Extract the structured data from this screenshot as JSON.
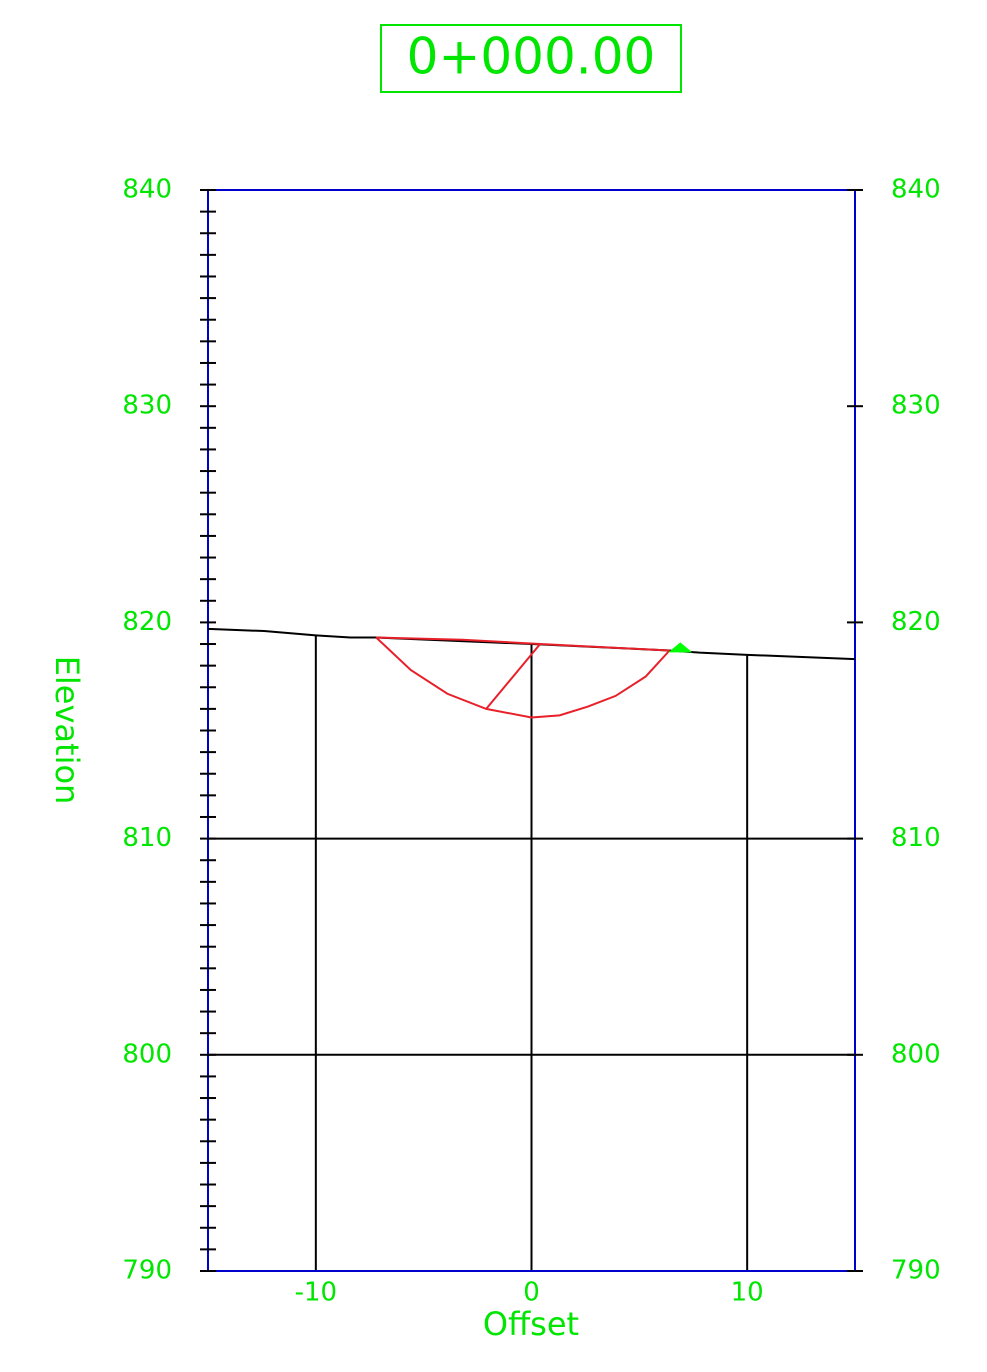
{
  "chart_data": {
    "type": "line",
    "title": "0+000.00",
    "xlabel": "Offset",
    "ylabel": "Elevation",
    "xlim": [
      -15,
      15
    ],
    "ylim": [
      790,
      840
    ],
    "xticks": [
      -10,
      0,
      10
    ],
    "yticks": [
      790,
      800,
      810,
      820,
      830,
      840
    ],
    "yminorticks": [
      791,
      792,
      793,
      794,
      795,
      796,
      797,
      798,
      799,
      801,
      802,
      803,
      804,
      805,
      806,
      807,
      808,
      809,
      811,
      812,
      813,
      814,
      815,
      816,
      817,
      818,
      819,
      821,
      822,
      823,
      824,
      825,
      826,
      827,
      828,
      829,
      831,
      832,
      833,
      834,
      835,
      836,
      837,
      838,
      839
    ],
    "grid": true,
    "axis_color": "#0000cc",
    "text_color": "#00e600",
    "series": [
      {
        "color": "#000000",
        "x": [
          -15,
          -12.4,
          -10,
          -8.4,
          -7.2,
          0,
          6.4,
          7.8,
          10,
          15
        ],
        "values": [
          819.7,
          819.6,
          819.4,
          819.3,
          819.3,
          819.0,
          818.7,
          818.6,
          818.5,
          818.3
        ]
      },
      {
        "color": "#e8202a",
        "x": [
          -7.2,
          -3.2,
          0.4,
          6.4
        ],
        "values": [
          819.3,
          819.2,
          819.0,
          818.7
        ]
      },
      {
        "color": "#e8202a",
        "x": [
          -7.2,
          -5.6,
          -3.9,
          -2.1,
          0,
          1.3,
          2.6,
          3.9,
          5.3,
          6.4
        ],
        "values": [
          819.3,
          817.8,
          816.7,
          816.0,
          815.6,
          815.7,
          816.1,
          816.6,
          817.5,
          818.7
        ]
      },
      {
        "color": "#e8202a",
        "x": [
          -2.1,
          0.4
        ],
        "values": [
          816.0,
          819.0
        ]
      }
    ],
    "marker": {
      "x": 6.9,
      "y": 818.8,
      "color": "#00ff00"
    }
  }
}
